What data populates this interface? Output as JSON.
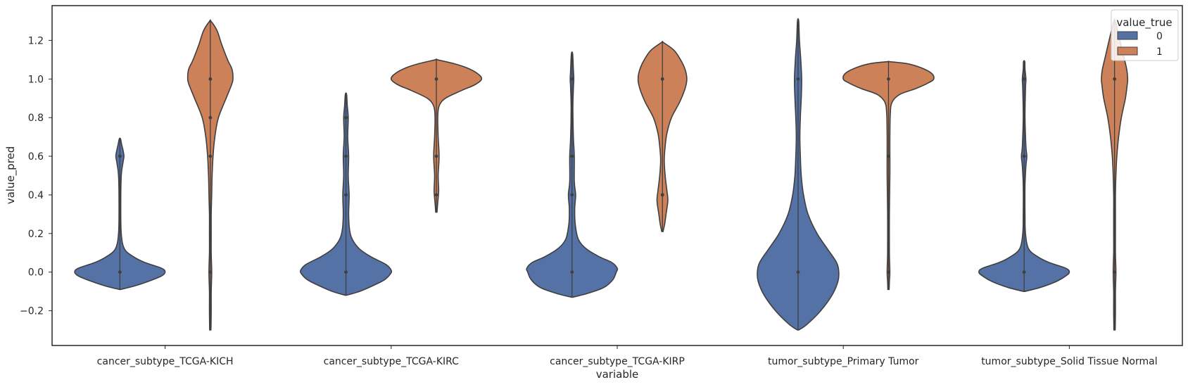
{
  "chart_data": {
    "type": "violin",
    "xlabel": "variable",
    "ylabel": "value_pred",
    "ylim": [
      -0.38,
      1.38
    ],
    "yticks": [
      -0.2,
      0.0,
      0.2,
      0.4,
      0.6,
      0.8,
      1.0,
      1.2
    ],
    "ytick_labels": [
      "−0.2",
      "0.0",
      "0.2",
      "0.4",
      "0.6",
      "0.8",
      "1.0",
      "1.2"
    ],
    "categories": [
      "cancer_subtype_TCGA-KICH",
      "cancer_subtype_TCGA-KIRC",
      "cancer_subtype_TCGA-KIRP",
      "tumor_subtype_Primary Tumor",
      "tumor_subtype_Solid Tissue Normal"
    ],
    "grid": false,
    "legend": {
      "title": "value_true",
      "placement": "top-right",
      "entries": [
        {
          "label": "0",
          "color": "#5572a6"
        },
        {
          "label": "1",
          "color": "#cc8159"
        }
      ]
    },
    "series": [
      {
        "name": "0",
        "color": "#5572a6",
        "violins": [
          {
            "ymin": -0.09,
            "ymax": 0.69,
            "points": [
              0.0,
              0.6
            ],
            "profile": [
              [
                -0.09,
                0.0
              ],
              [
                -0.07,
                0.35
              ],
              [
                -0.04,
                0.72
              ],
              [
                -0.02,
                0.92
              ],
              [
                0.0,
                1.0
              ],
              [
                0.02,
                0.92
              ],
              [
                0.05,
                0.55
              ],
              [
                0.08,
                0.3
              ],
              [
                0.12,
                0.1
              ],
              [
                0.2,
                0.03
              ],
              [
                0.35,
                0.02
              ],
              [
                0.5,
                0.03
              ],
              [
                0.57,
                0.07
              ],
              [
                0.6,
                0.09
              ],
              [
                0.63,
                0.07
              ],
              [
                0.66,
                0.04
              ],
              [
                0.69,
                0.0
              ]
            ]
          },
          {
            "ymin": -0.12,
            "ymax": 0.92,
            "points": [
              0.0,
              0.4,
              0.6,
              0.8
            ],
            "profile": [
              [
                -0.12,
                0.0
              ],
              [
                -0.1,
                0.3
              ],
              [
                -0.07,
                0.6
              ],
              [
                -0.04,
                0.85
              ],
              [
                -0.01,
                0.98
              ],
              [
                0.01,
                1.0
              ],
              [
                0.04,
                0.88
              ],
              [
                0.08,
                0.55
              ],
              [
                0.12,
                0.3
              ],
              [
                0.17,
                0.14
              ],
              [
                0.22,
                0.08
              ],
              [
                0.3,
                0.06
              ],
              [
                0.4,
                0.07
              ],
              [
                0.5,
                0.05
              ],
              [
                0.6,
                0.06
              ],
              [
                0.7,
                0.04
              ],
              [
                0.8,
                0.05
              ],
              [
                0.86,
                0.03
              ],
              [
                0.92,
                0.0
              ]
            ]
          },
          {
            "ymin": -0.13,
            "ymax": 1.13,
            "points": [
              0.0,
              0.4,
              0.6,
              1.0
            ],
            "profile": [
              [
                -0.13,
                0.0
              ],
              [
                -0.11,
                0.35
              ],
              [
                -0.08,
                0.7
              ],
              [
                -0.04,
                0.9
              ],
              [
                0.0,
                0.98
              ],
              [
                0.02,
                1.0
              ],
              [
                0.05,
                0.88
              ],
              [
                0.08,
                0.6
              ],
              [
                0.12,
                0.32
              ],
              [
                0.17,
                0.14
              ],
              [
                0.25,
                0.07
              ],
              [
                0.33,
                0.06
              ],
              [
                0.4,
                0.08
              ],
              [
                0.47,
                0.05
              ],
              [
                0.6,
                0.05
              ],
              [
                0.7,
                0.03
              ],
              [
                0.85,
                0.02
              ],
              [
                0.95,
                0.03
              ],
              [
                1.0,
                0.04
              ],
              [
                1.05,
                0.03
              ],
              [
                1.13,
                0.0
              ]
            ]
          },
          {
            "ymin": -0.3,
            "ymax": 1.3,
            "points": [
              0.0,
              1.0
            ],
            "profile": [
              [
                -0.3,
                0.0
              ],
              [
                -0.27,
                0.2
              ],
              [
                -0.2,
                0.5
              ],
              [
                -0.12,
                0.75
              ],
              [
                -0.05,
                0.88
              ],
              [
                0.0,
                0.9
              ],
              [
                0.05,
                0.85
              ],
              [
                0.12,
                0.65
              ],
              [
                0.2,
                0.42
              ],
              [
                0.3,
                0.22
              ],
              [
                0.4,
                0.12
              ],
              [
                0.5,
                0.07
              ],
              [
                0.6,
                0.05
              ],
              [
                0.7,
                0.04
              ],
              [
                0.8,
                0.05
              ],
              [
                0.9,
                0.07
              ],
              [
                1.0,
                0.08
              ],
              [
                1.1,
                0.06
              ],
              [
                1.2,
                0.03
              ],
              [
                1.3,
                0.0
              ]
            ]
          },
          {
            "ymin": -0.1,
            "ymax": 1.09,
            "points": [
              0.0,
              0.6,
              1.0
            ],
            "profile": [
              [
                -0.1,
                0.0
              ],
              [
                -0.08,
                0.35
              ],
              [
                -0.05,
                0.7
              ],
              [
                -0.02,
                0.92
              ],
              [
                0.0,
                1.0
              ],
              [
                0.02,
                0.92
              ],
              [
                0.05,
                0.55
              ],
              [
                0.08,
                0.3
              ],
              [
                0.12,
                0.1
              ],
              [
                0.2,
                0.03
              ],
              [
                0.3,
                0.02
              ],
              [
                0.45,
                0.02
              ],
              [
                0.55,
                0.04
              ],
              [
                0.6,
                0.06
              ],
              [
                0.65,
                0.04
              ],
              [
                0.8,
                0.02
              ],
              [
                0.95,
                0.03
              ],
              [
                1.0,
                0.04
              ],
              [
                1.05,
                0.02
              ],
              [
                1.09,
                0.0
              ]
            ]
          }
        ]
      },
      {
        "name": "1",
        "color": "#cc8159",
        "violins": [
          {
            "ymin": -0.3,
            "ymax": 1.3,
            "points": [
              0.0,
              0.6,
              0.8,
              1.0
            ],
            "profile": [
              [
                -0.3,
                0.0
              ],
              [
                -0.2,
                0.02
              ],
              [
                -0.1,
                0.02
              ],
              [
                0.0,
                0.03
              ],
              [
                0.1,
                0.02
              ],
              [
                0.2,
                0.02
              ],
              [
                0.3,
                0.02
              ],
              [
                0.4,
                0.03
              ],
              [
                0.5,
                0.04
              ],
              [
                0.6,
                0.06
              ],
              [
                0.7,
                0.1
              ],
              [
                0.8,
                0.18
              ],
              [
                0.9,
                0.35
              ],
              [
                0.97,
                0.47
              ],
              [
                1.0,
                0.5
              ],
              [
                1.05,
                0.48
              ],
              [
                1.1,
                0.38
              ],
              [
                1.18,
                0.25
              ],
              [
                1.25,
                0.15
              ],
              [
                1.3,
                0.0
              ]
            ]
          },
          {
            "ymin": 0.31,
            "ymax": 1.1,
            "points": [
              0.4,
              0.6,
              1.0
            ],
            "profile": [
              [
                0.31,
                0.0
              ],
              [
                0.36,
                0.03
              ],
              [
                0.42,
                0.05
              ],
              [
                0.5,
                0.04
              ],
              [
                0.6,
                0.06
              ],
              [
                0.7,
                0.04
              ],
              [
                0.8,
                0.03
              ],
              [
                0.86,
                0.06
              ],
              [
                0.9,
                0.2
              ],
              [
                0.94,
                0.55
              ],
              [
                0.97,
                0.85
              ],
              [
                1.0,
                1.0
              ],
              [
                1.03,
                0.9
              ],
              [
                1.06,
                0.65
              ],
              [
                1.08,
                0.38
              ],
              [
                1.1,
                0.0
              ]
            ]
          },
          {
            "ymin": 0.21,
            "ymax": 1.19,
            "points": [
              0.4,
              1.0
            ],
            "profile": [
              [
                0.21,
                0.0
              ],
              [
                0.25,
                0.05
              ],
              [
                0.3,
                0.08
              ],
              [
                0.37,
                0.12
              ],
              [
                0.42,
                0.1
              ],
              [
                0.5,
                0.06
              ],
              [
                0.58,
                0.04
              ],
              [
                0.65,
                0.06
              ],
              [
                0.72,
                0.1
              ],
              [
                0.8,
                0.2
              ],
              [
                0.88,
                0.38
              ],
              [
                0.95,
                0.5
              ],
              [
                1.0,
                0.54
              ],
              [
                1.05,
                0.5
              ],
              [
                1.1,
                0.4
              ],
              [
                1.15,
                0.25
              ],
              [
                1.19,
                0.0
              ]
            ]
          },
          {
            "ymin": -0.09,
            "ymax": 1.09,
            "points": [
              0.0,
              0.6,
              1.0
            ],
            "profile": [
              [
                -0.09,
                0.0
              ],
              [
                -0.05,
                0.02
              ],
              [
                0.0,
                0.03
              ],
              [
                0.1,
                0.02
              ],
              [
                0.3,
                0.02
              ],
              [
                0.5,
                0.03
              ],
              [
                0.6,
                0.03
              ],
              [
                0.7,
                0.03
              ],
              [
                0.82,
                0.04
              ],
              [
                0.88,
                0.08
              ],
              [
                0.92,
                0.25
              ],
              [
                0.95,
                0.6
              ],
              [
                0.98,
                0.88
              ],
              [
                1.0,
                1.0
              ],
              [
                1.03,
                0.95
              ],
              [
                1.06,
                0.7
              ],
              [
                1.08,
                0.4
              ],
              [
                1.09,
                0.0
              ]
            ]
          },
          {
            "ymin": -0.3,
            "ymax": 1.3,
            "points": [
              0.0,
              1.0
            ],
            "profile": [
              [
                -0.3,
                0.0
              ],
              [
                -0.2,
                0.02
              ],
              [
                -0.1,
                0.02
              ],
              [
                0.0,
                0.03
              ],
              [
                0.1,
                0.02
              ],
              [
                0.2,
                0.02
              ],
              [
                0.3,
                0.02
              ],
              [
                0.4,
                0.02
              ],
              [
                0.5,
                0.03
              ],
              [
                0.6,
                0.05
              ],
              [
                0.7,
                0.09
              ],
              [
                0.8,
                0.15
              ],
              [
                0.9,
                0.24
              ],
              [
                0.97,
                0.28
              ],
              [
                1.0,
                0.29
              ],
              [
                1.05,
                0.27
              ],
              [
                1.12,
                0.2
              ],
              [
                1.2,
                0.12
              ],
              [
                1.3,
                0.0
              ]
            ]
          }
        ]
      }
    ]
  }
}
